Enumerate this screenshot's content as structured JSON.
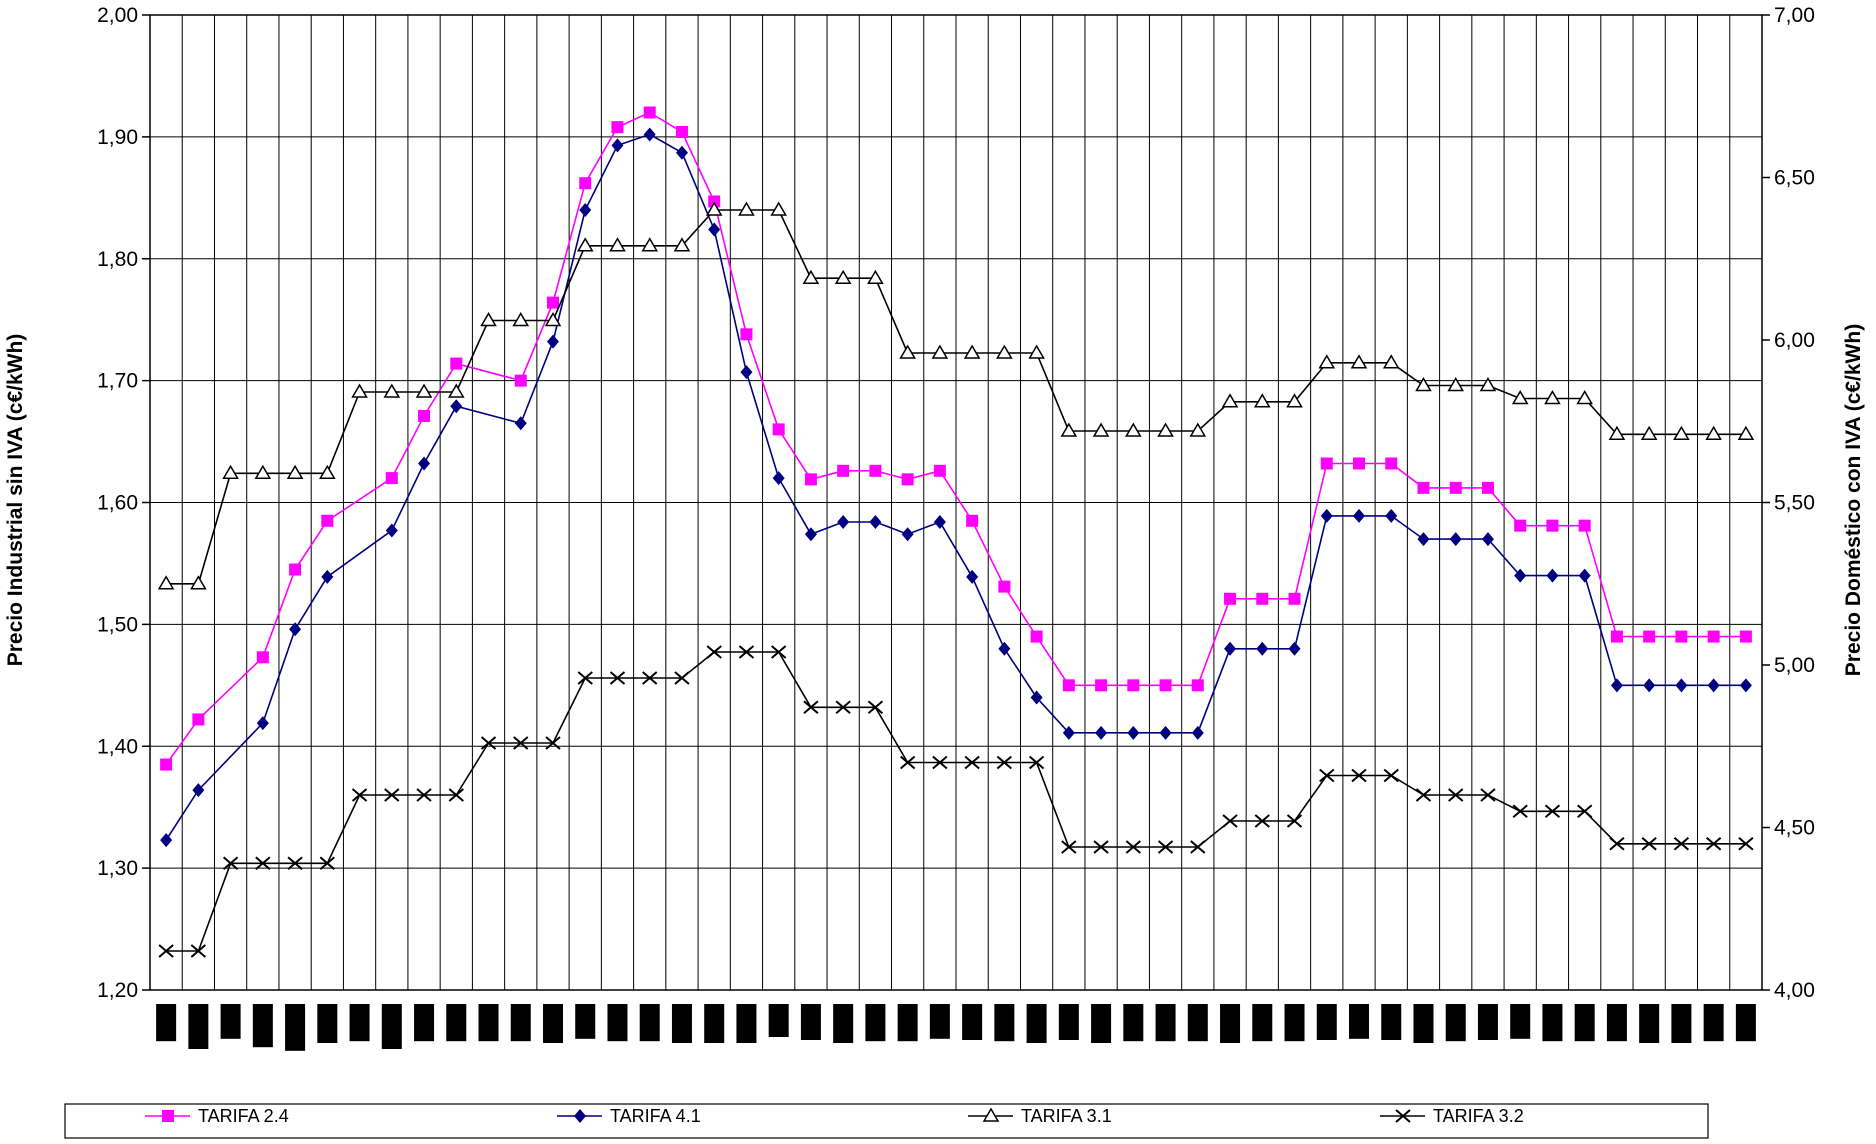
{
  "chart_data": {
    "type": "line",
    "title": "",
    "ylabel_left": "Precio Industrial sin IVA (c€/kWh)",
    "ylabel_right": "Precio Doméstico con IVA (c€/kWh)",
    "ylim_left": [
      1.2,
      2.0
    ],
    "ylim_right": [
      4.0,
      7.0
    ],
    "yticks_left": [
      "1,20",
      "1,30",
      "1,40",
      "1,50",
      "1,60",
      "1,70",
      "1,80",
      "1,90",
      "2,00"
    ],
    "yticks_right": [
      "4,00",
      "4,50",
      "5,00",
      "5,50",
      "6,00",
      "6,50",
      "7,00"
    ],
    "x_count": 50,
    "grid": true,
    "legend_position": "bottom",
    "category_bar_heights": [
      0.42,
      0.55,
      0.38,
      0.52,
      0.58,
      0.45,
      0.42,
      0.55,
      0.42,
      0.42,
      0.42,
      0.42,
      0.45,
      0.38,
      0.42,
      0.42,
      0.45,
      0.45,
      0.45,
      0.35,
      0.4,
      0.45,
      0.42,
      0.42,
      0.38,
      0.4,
      0.42,
      0.45,
      0.4,
      0.45,
      0.42,
      0.42,
      0.42,
      0.45,
      0.42,
      0.42,
      0.4,
      0.38,
      0.4,
      0.45,
      0.42,
      0.4,
      0.38,
      0.42,
      0.42,
      0.42,
      0.45,
      0.45,
      0.42,
      0.42
    ],
    "series": [
      {
        "name": "TARIFA 2.4",
        "axis": "left",
        "color": "#FF00FF",
        "marker": "square",
        "x": [
          0,
          1,
          3,
          4,
          5,
          7,
          8,
          9,
          11,
          12,
          13,
          14,
          15,
          16,
          17,
          18,
          19,
          20,
          21,
          22,
          23,
          24,
          25,
          26,
          27,
          28,
          29,
          30,
          31,
          32,
          33,
          34,
          35,
          36,
          37,
          38,
          39,
          40,
          41,
          42,
          43,
          44,
          45,
          46,
          47,
          48,
          49
        ],
        "values": [
          1.385,
          1.422,
          1.473,
          1.545,
          1.585,
          1.62,
          1.671,
          1.714,
          1.7,
          1.764,
          1.862,
          1.908,
          1.92,
          1.904,
          1.847,
          1.738,
          1.66,
          1.619,
          1.626,
          1.626,
          1.619,
          1.626,
          1.585,
          1.531,
          1.49,
          1.45,
          1.45,
          1.45,
          1.45,
          1.45,
          1.521,
          1.521,
          1.521,
          1.632,
          1.632,
          1.632,
          1.612,
          1.612,
          1.612,
          1.581,
          1.581,
          1.581,
          1.49,
          1.49,
          1.49,
          1.49,
          1.49
        ]
      },
      {
        "name": "TARIFA 4.1",
        "axis": "left",
        "color": "#000080",
        "marker": "diamond",
        "x": [
          0,
          1,
          3,
          4,
          5,
          7,
          8,
          9,
          11,
          12,
          13,
          14,
          15,
          16,
          17,
          18,
          19,
          20,
          21,
          22,
          23,
          24,
          25,
          26,
          27,
          28,
          29,
          30,
          31,
          32,
          33,
          34,
          35,
          36,
          37,
          38,
          39,
          40,
          41,
          42,
          43,
          44,
          45,
          46,
          47,
          48,
          49
        ],
        "values": [
          1.323,
          1.364,
          1.419,
          1.496,
          1.539,
          1.577,
          1.632,
          1.679,
          1.665,
          1.732,
          1.84,
          1.893,
          1.902,
          1.887,
          1.824,
          1.707,
          1.62,
          1.574,
          1.584,
          1.584,
          1.574,
          1.584,
          1.539,
          1.48,
          1.44,
          1.411,
          1.411,
          1.411,
          1.411,
          1.411,
          1.48,
          1.48,
          1.48,
          1.589,
          1.589,
          1.589,
          1.57,
          1.57,
          1.57,
          1.54,
          1.54,
          1.54,
          1.45,
          1.45,
          1.45,
          1.45,
          1.45
        ]
      },
      {
        "name": "TARIFA 3.1",
        "axis": "right",
        "color": "#000000",
        "marker": "triangle",
        "x": [
          0,
          1,
          2,
          3,
          4,
          5,
          6,
          7,
          8,
          9,
          10,
          11,
          12,
          13,
          14,
          15,
          16,
          17,
          18,
          19,
          20,
          21,
          22,
          23,
          24,
          25,
          26,
          27,
          28,
          29,
          30,
          31,
          32,
          33,
          34,
          35,
          36,
          37,
          38,
          39,
          40,
          41,
          42,
          43,
          44,
          45,
          46,
          47,
          48,
          49
        ],
        "values": [
          5.25,
          5.25,
          5.59,
          5.59,
          5.59,
          5.59,
          5.84,
          5.84,
          5.84,
          5.84,
          6.06,
          6.06,
          6.06,
          6.29,
          6.29,
          6.29,
          6.29,
          6.4,
          6.4,
          6.4,
          6.19,
          6.19,
          6.19,
          5.96,
          5.96,
          5.96,
          5.96,
          5.96,
          5.72,
          5.72,
          5.72,
          5.72,
          5.72,
          5.81,
          5.81,
          5.81,
          5.93,
          5.93,
          5.93,
          5.86,
          5.86,
          5.86,
          5.82,
          5.82,
          5.82,
          5.71,
          5.71,
          5.71,
          5.71,
          5.71
        ]
      },
      {
        "name": "TARIFA 3.2",
        "axis": "right",
        "color": "#000000",
        "marker": "x",
        "x": [
          0,
          1,
          2,
          3,
          4,
          5,
          6,
          7,
          8,
          9,
          10,
          11,
          12,
          13,
          14,
          15,
          16,
          17,
          18,
          19,
          20,
          21,
          22,
          23,
          24,
          25,
          26,
          27,
          28,
          29,
          30,
          31,
          32,
          33,
          34,
          35,
          36,
          37,
          38,
          39,
          40,
          41,
          42,
          43,
          44,
          45,
          46,
          47,
          48,
          49
        ],
        "values": [
          4.12,
          4.12,
          4.39,
          4.39,
          4.39,
          4.39,
          4.6,
          4.6,
          4.6,
          4.6,
          4.76,
          4.76,
          4.76,
          4.96,
          4.96,
          4.96,
          4.96,
          5.04,
          5.04,
          5.04,
          4.87,
          4.87,
          4.87,
          4.7,
          4.7,
          4.7,
          4.7,
          4.7,
          4.44,
          4.44,
          4.44,
          4.44,
          4.44,
          4.52,
          4.52,
          4.52,
          4.66,
          4.66,
          4.66,
          4.6,
          4.6,
          4.6,
          4.55,
          4.55,
          4.55,
          4.45,
          4.45,
          4.45,
          4.45,
          4.45
        ]
      }
    ]
  }
}
